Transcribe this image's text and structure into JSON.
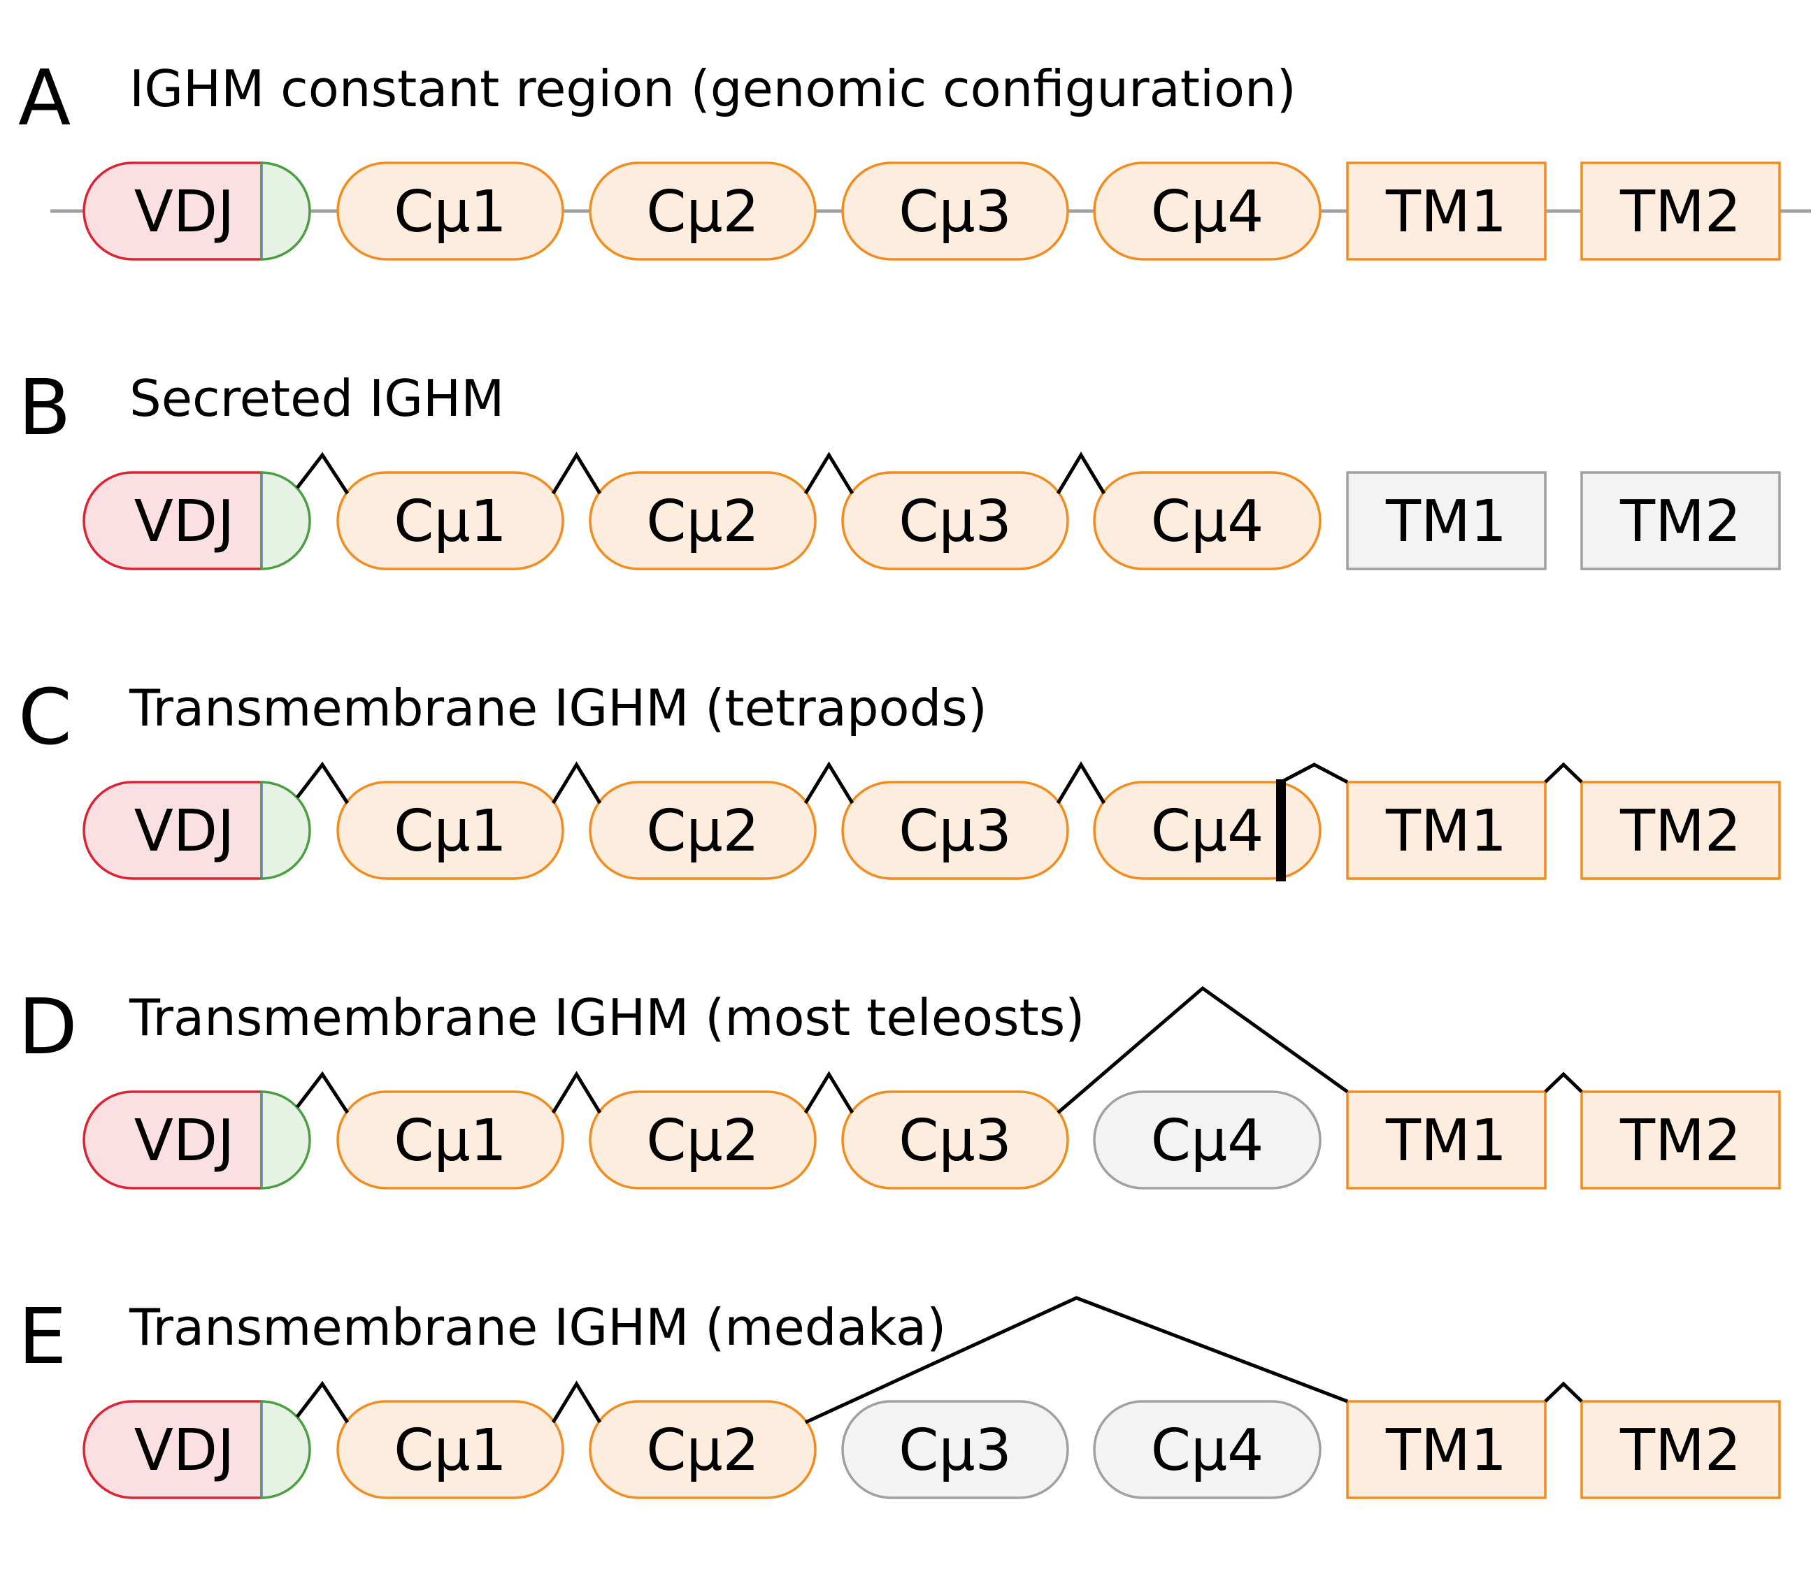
{
  "colors": {
    "vdj_fill": "#fae0e3",
    "vdj_stroke": "#dd2233",
    "leader_fill": "#e6f2e4",
    "leader_stroke": "#4aa040",
    "exon_fill": "#fdeddf",
    "exon_stroke": "#f28c1f",
    "inactive_fill": "#f3f3f3",
    "inactive_stroke": "#a0a0a0",
    "backbone": "#a0a0a0",
    "splice": "#000000"
  },
  "exons": {
    "vdj": "VDJ",
    "cm1": "Cμ1",
    "cm2": "Cμ2",
    "cm3": "Cμ3",
    "cm4": "Cμ4",
    "tm1": "TM1",
    "tm2": "TM2"
  },
  "panels": [
    {
      "letter": "A",
      "title": "IGHM constant region (genomic configuration)",
      "backbone": true,
      "inactive": [],
      "splices": [],
      "cm4_truncated": false
    },
    {
      "letter": "B",
      "title": "Secreted IGHM",
      "backbone": false,
      "inactive": [
        "tm1",
        "tm2"
      ],
      "splices": [
        [
          "vdj",
          "cm1"
        ],
        [
          "cm1",
          "cm2"
        ],
        [
          "cm2",
          "cm3"
        ],
        [
          "cm3",
          "cm4"
        ]
      ],
      "cm4_truncated": false
    },
    {
      "letter": "C",
      "title": "Transmembrane IGHM (tetrapods)",
      "backbone": false,
      "inactive": [],
      "splices": [
        [
          "vdj",
          "cm1"
        ],
        [
          "cm1",
          "cm2"
        ],
        [
          "cm2",
          "cm3"
        ],
        [
          "cm3",
          "cm4"
        ],
        [
          "cm4",
          "tm1"
        ],
        [
          "tm1",
          "tm2"
        ]
      ],
      "cm4_truncated": true
    },
    {
      "letter": "D",
      "title": "Transmembrane IGHM (most teleosts)",
      "backbone": false,
      "inactive": [
        "cm4"
      ],
      "splices": [
        [
          "vdj",
          "cm1"
        ],
        [
          "cm1",
          "cm2"
        ],
        [
          "cm2",
          "cm3"
        ],
        [
          "cm3",
          "tm1"
        ],
        [
          "tm1",
          "tm2"
        ]
      ],
      "cm4_truncated": false
    },
    {
      "letter": "E",
      "title": "Transmembrane IGHM (medaka)",
      "backbone": false,
      "inactive": [
        "cm3",
        "cm4"
      ],
      "splices": [
        [
          "vdj",
          "cm1"
        ],
        [
          "cm1",
          "cm2"
        ],
        [
          "cm2",
          "tm1"
        ],
        [
          "tm1",
          "tm2"
        ]
      ],
      "cm4_truncated": false
    }
  ]
}
